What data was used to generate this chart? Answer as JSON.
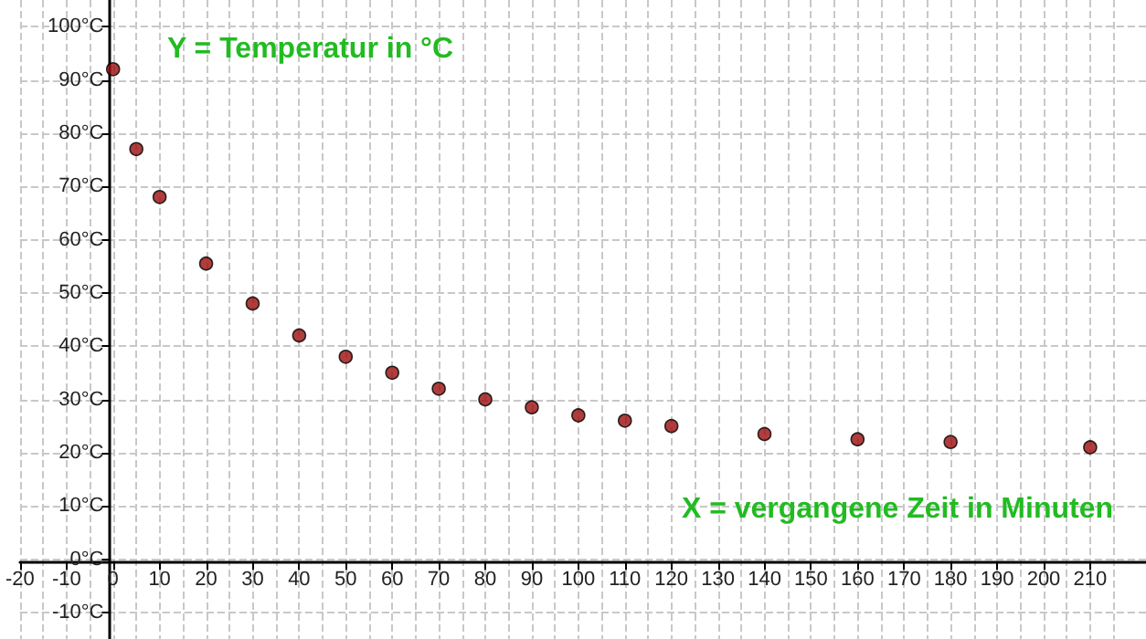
{
  "chart_data": {
    "type": "scatter",
    "xlabel": "X = vergangene Zeit in Minuten",
    "ylabel": "Y = Temperatur in °C",
    "x": [
      0,
      5,
      10,
      20,
      30,
      40,
      50,
      60,
      70,
      80,
      90,
      100,
      110,
      120,
      140,
      160,
      180,
      210
    ],
    "series": [
      {
        "color": "#9b0d0d",
        "values": [
          92,
          77,
          68,
          55.5,
          48,
          42,
          38,
          35,
          32,
          30,
          28.5,
          27,
          26,
          25,
          23.5,
          22.5,
          22,
          21
        ]
      }
    ],
    "xlim": [
      -20,
      222
    ],
    "ylim": [
      -15,
      105
    ],
    "xticks": [
      -20,
      -10,
      0,
      10,
      20,
      30,
      40,
      50,
      60,
      70,
      80,
      90,
      100,
      110,
      120,
      130,
      140,
      150,
      160,
      170,
      180,
      190,
      200,
      210
    ],
    "yticks": [
      {
        "value": -10,
        "label": "-10°C"
      },
      {
        "value": 0,
        "label": "0°C"
      },
      {
        "value": 10,
        "label": "10°C"
      },
      {
        "value": 20,
        "label": "20°C"
      },
      {
        "value": 30,
        "label": "30°C"
      },
      {
        "value": 40,
        "label": "40°C"
      },
      {
        "value": 50,
        "label": "50°C"
      },
      {
        "value": 60,
        "label": "60°C"
      },
      {
        "value": 70,
        "label": "70°C"
      },
      {
        "value": 80,
        "label": "80°C"
      },
      {
        "value": 90,
        "label": "90°C"
      },
      {
        "value": 100,
        "label": "100°C"
      }
    ],
    "grid": true,
    "marker": "circle"
  }
}
